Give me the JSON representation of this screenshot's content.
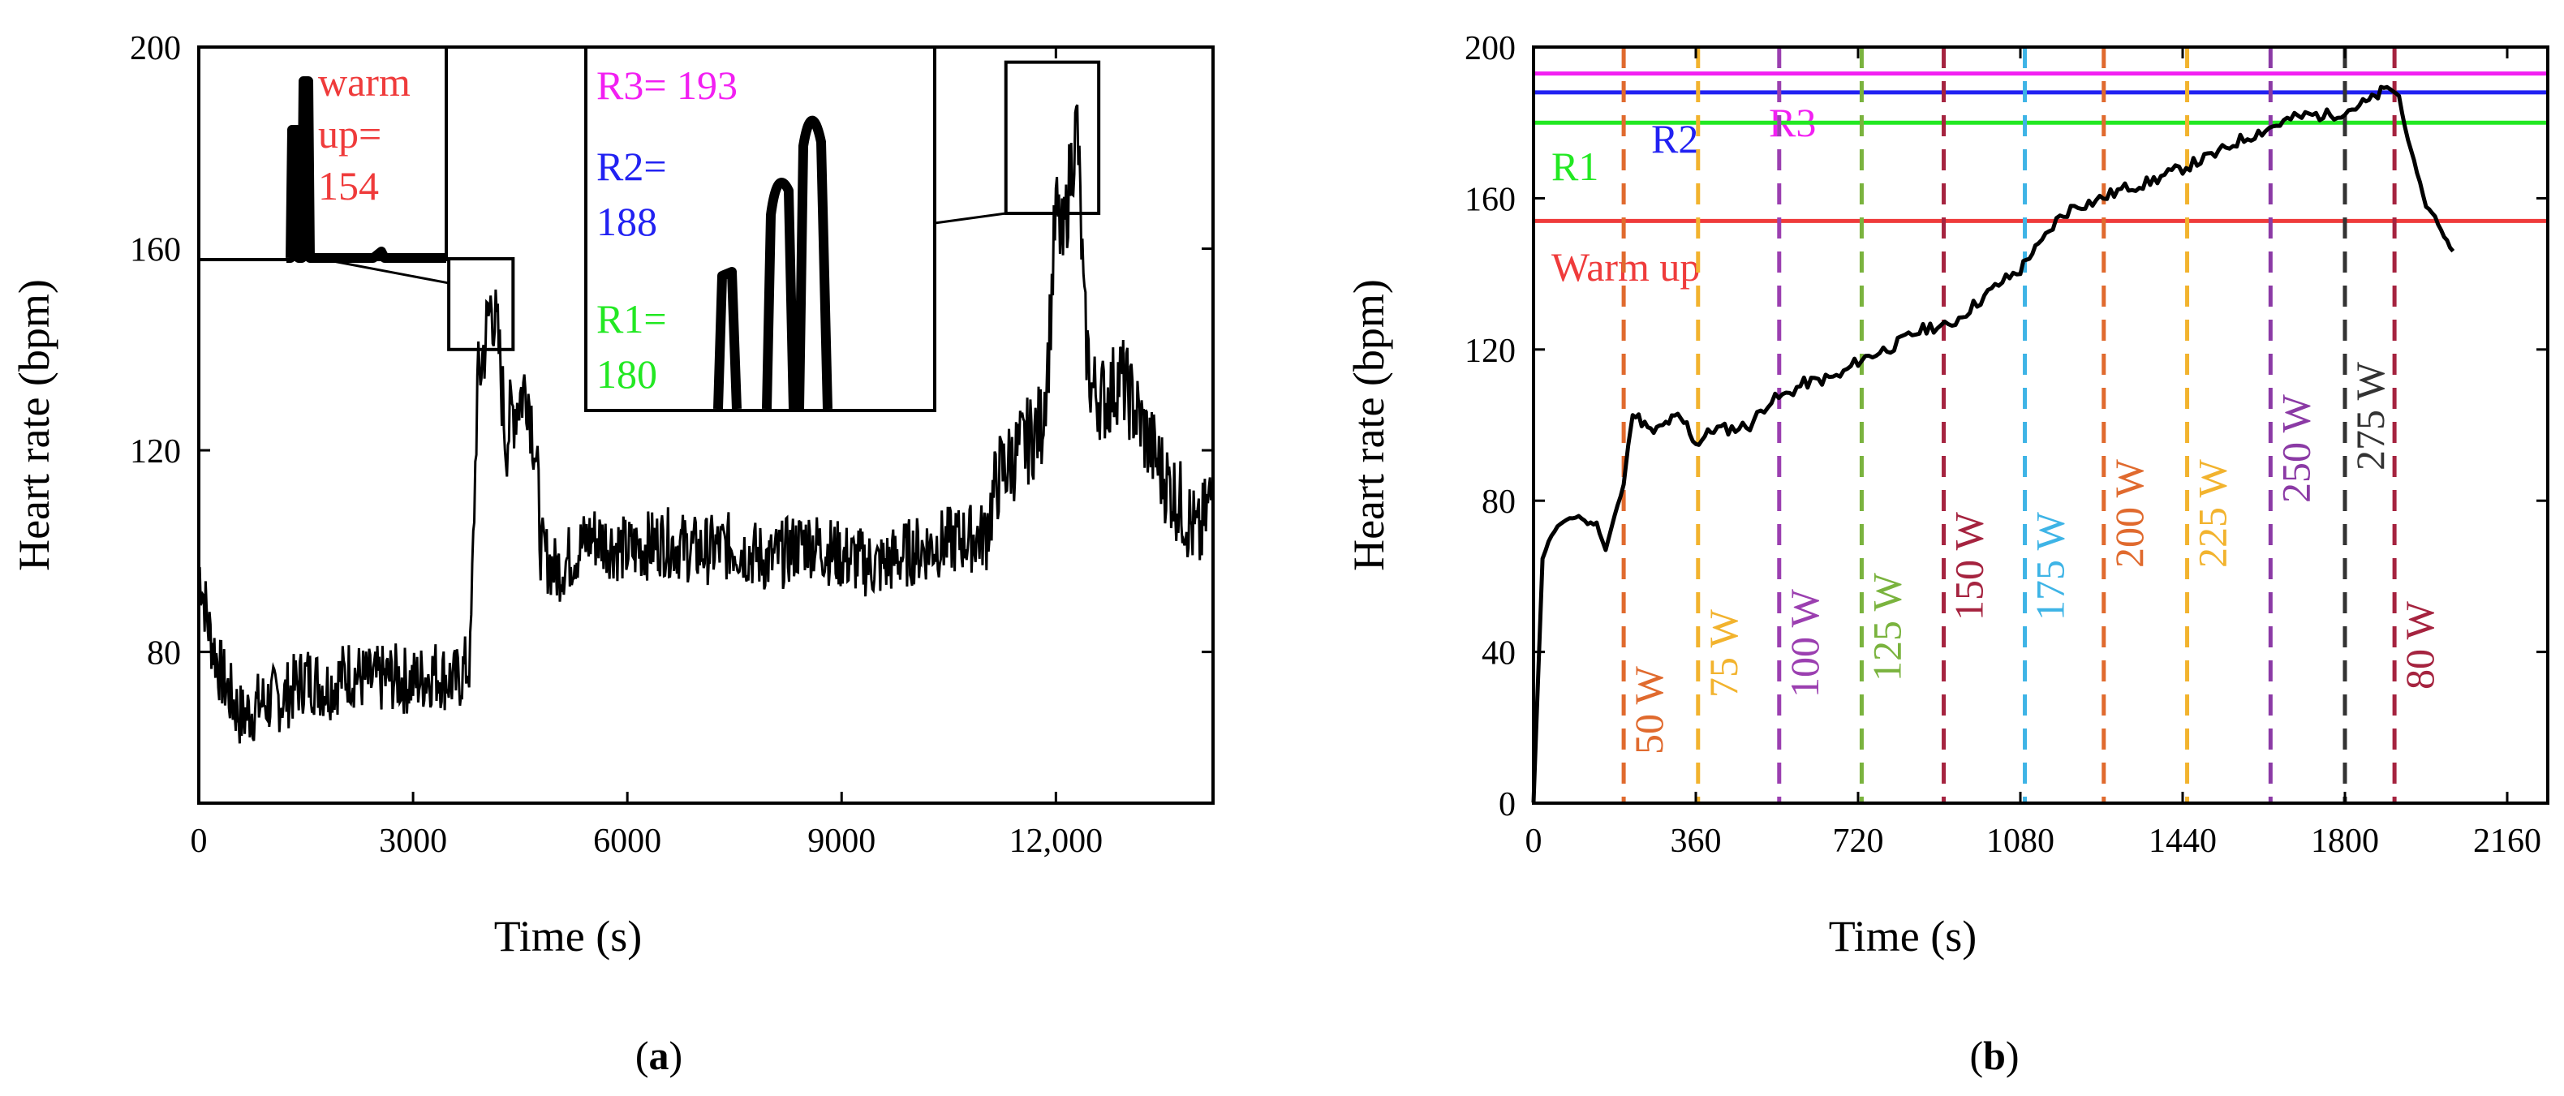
{
  "colors": {
    "axis": "#000000",
    "series": "#000000",
    "warmup": "#ef3b3b",
    "r1": "#22e822",
    "r2": "#2121f2",
    "r3": "#f21ff2",
    "w50": "#e06a2e",
    "w75": "#f2b32e",
    "w100": "#9b3fb0",
    "w125": "#7ab33e",
    "w150": "#a5233f",
    "w175": "#3eb4e6",
    "w200": "#e06a2e",
    "w225": "#f2b32e",
    "w250": "#8b3aa5",
    "w275": "#333333",
    "w80": "#a5233f"
  },
  "panels": {
    "a": {
      "label_open": "(",
      "label": "a",
      "label_close": ")"
    },
    "b": {
      "label_open": "(",
      "label": "b",
      "label_close": ")"
    }
  },
  "chart_data": [
    {
      "type": "line",
      "id": "a",
      "xlabel": "Time (s)",
      "ylabel": "Heart rate (bpm)",
      "xlim": [
        0,
        14200
      ],
      "ylim": [
        50,
        200
      ],
      "xticks": [
        0,
        3000,
        6000,
        9000,
        12000
      ],
      "xtick_labels": [
        "0",
        "3000",
        "6000",
        "9000",
        "12,000"
      ],
      "yticks": [
        80,
        120,
        160,
        200
      ],
      "ytick_labels": [
        "80",
        "120",
        "160",
        "200"
      ],
      "series": [
        {
          "name": "Heart rate",
          "description": "noisy signal approximated by anchor points",
          "x": [
            0,
            150,
            300,
            450,
            600,
            900,
            1200,
            1500,
            1800,
            2100,
            2400,
            2700,
            3000,
            3300,
            3600,
            3800,
            3900,
            4000,
            4100,
            4200,
            4300,
            4400,
            4500,
            4600,
            4700,
            4800,
            4900,
            5000,
            5500,
            6000,
            6500,
            7000,
            7500,
            8000,
            8500,
            9000,
            9500,
            10000,
            10500,
            11000,
            11200,
            11500,
            11800,
            11900,
            12000,
            12100,
            12200,
            12300,
            12400,
            12500,
            12700,
            12900,
            13200,
            13500,
            13800,
            14000,
            14200
          ],
          "y": [
            97,
            84,
            76,
            71,
            67,
            70,
            71,
            75,
            73,
            76,
            74,
            75,
            74,
            76,
            74,
            78,
            132,
            141,
            150,
            140,
            122,
            128,
            131,
            133,
            122,
            100,
            98,
            96,
            103,
            100,
            102,
            100,
            101,
            98,
            102,
            99,
            97,
            100,
            102,
            103,
            115,
            120,
            125,
            140,
            168,
            160,
            175,
            185,
            145,
            132,
            130,
            135,
            125,
            115,
            108,
            102,
            112
          ]
        }
      ],
      "insets": [
        {
          "name": "warm-up inset",
          "zoom_region": {
            "x": [
              3500,
              4400
            ],
            "y": [
              140,
              158
            ]
          },
          "lines": [
            {
              "text": "warm",
              "color": "warmup"
            },
            {
              "text": "up=",
              "color": "warmup"
            },
            {
              "text": "154",
              "color": "warmup"
            }
          ]
        },
        {
          "name": "peaks inset",
          "zoom_region": {
            "x": [
              11300,
              12600
            ],
            "y": [
              167,
              197
            ]
          },
          "lines": [
            {
              "text": "R3= 193",
              "color": "r3"
            },
            {
              "text": "R2=",
              "color": "r2"
            },
            {
              "text": "188",
              "color": "r2"
            },
            {
              "text": "R1=",
              "color": "r1"
            },
            {
              "text": "180",
              "color": "r1"
            }
          ]
        }
      ]
    },
    {
      "type": "line",
      "id": "b",
      "xlabel": "Time (s)",
      "ylabel": "Heart rate (bpm)",
      "xlim": [
        0,
        2250
      ],
      "ylim": [
        0,
        200
      ],
      "xticks": [
        0,
        360,
        720,
        1080,
        1440,
        1800,
        2160
      ],
      "xtick_labels": [
        "0",
        "360",
        "720",
        "1080",
        "1440",
        "1800",
        "2160"
      ],
      "yticks": [
        0,
        40,
        80,
        120,
        160,
        200
      ],
      "ytick_labels": [
        "0",
        "40",
        "80",
        "120",
        "160",
        "200"
      ],
      "series": [
        {
          "name": "Heart rate",
          "x": [
            0,
            20,
            40,
            60,
            80,
            100,
            120,
            140,
            160,
            180,
            200,
            210,
            220,
            240,
            260,
            280,
            300,
            320,
            340,
            360,
            380,
            400,
            440,
            480,
            520,
            560,
            600,
            640,
            680,
            720,
            760,
            800,
            840,
            880,
            920,
            960,
            1000,
            1040,
            1080,
            1100,
            1120,
            1160,
            1200,
            1240,
            1280,
            1320,
            1360,
            1400,
            1440,
            1480,
            1520,
            1560,
            1600,
            1640,
            1680,
            1720,
            1760,
            1800,
            1840,
            1860,
            1880,
            1900,
            1920,
            1940,
            1960,
            1980,
            2000,
            2020,
            2040
          ],
          "y": [
            0,
            65,
            71,
            74,
            75,
            76,
            74,
            74,
            67,
            76,
            84,
            95,
            103,
            101,
            98,
            99,
            101,
            102,
            100,
            95,
            97,
            99,
            99,
            100,
            106,
            108,
            111,
            112,
            113,
            117,
            119,
            121,
            124,
            126,
            126,
            130,
            134,
            138,
            141,
            145,
            147,
            154,
            158,
            159,
            161,
            163,
            164,
            166,
            168,
            170,
            172,
            175,
            177,
            179,
            181,
            182,
            182,
            183,
            185,
            186,
            188,
            189,
            187,
            175,
            167,
            158,
            155,
            150,
            146
          ]
        }
      ],
      "hlines": [
        {
          "label": "R3",
          "value": 193,
          "color": "r3"
        },
        {
          "label": "R2",
          "value": 188,
          "color": "r2"
        },
        {
          "label": "R1",
          "value": 180,
          "color": "r1"
        },
        {
          "label": "Warm up",
          "value": 154,
          "color": "warmup"
        }
      ],
      "vlines": [
        {
          "label": "50 W",
          "x": 200,
          "color": "w50"
        },
        {
          "label": "75 W",
          "x": 365,
          "color": "w75"
        },
        {
          "label": "100 W",
          "x": 545,
          "color": "w100"
        },
        {
          "label": "125 W",
          "x": 728,
          "color": "w125"
        },
        {
          "label": "150 W",
          "x": 910,
          "color": "w150"
        },
        {
          "label": "175 W",
          "x": 1090,
          "color": "w175"
        },
        {
          "label": "200 W",
          "x": 1265,
          "color": "w200"
        },
        {
          "label": "225 W",
          "x": 1450,
          "color": "w225"
        },
        {
          "label": "250 W",
          "x": 1635,
          "color": "w250"
        },
        {
          "label": "275 W",
          "x": 1800,
          "color": "w275"
        },
        {
          "label": "80 W",
          "x": 1910,
          "color": "w80"
        }
      ]
    }
  ]
}
